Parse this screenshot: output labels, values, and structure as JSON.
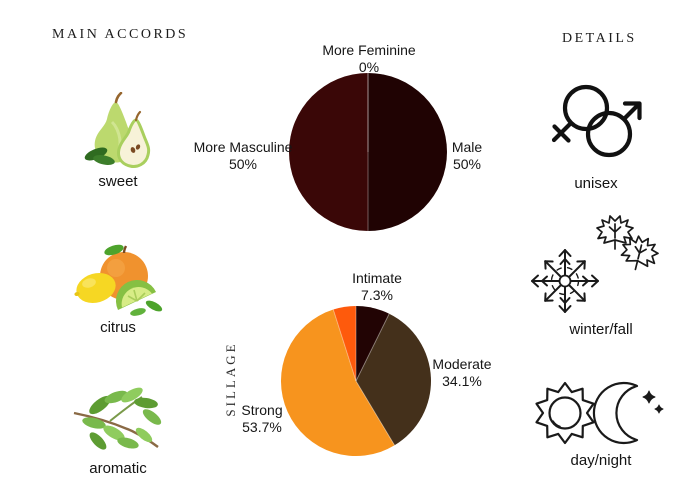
{
  "page": {
    "background": "#ffffff",
    "text_color": "#141414"
  },
  "accords": {
    "title": "MAIN ACCORDS",
    "items": [
      {
        "label": "sweet",
        "icon": "pear-icon"
      },
      {
        "label": "citrus",
        "icon": "citrus-fruits-icon"
      },
      {
        "label": "aromatic",
        "icon": "herb-sprig-icon"
      }
    ]
  },
  "details": {
    "title": "DETAILS",
    "items": [
      {
        "label": "unisex",
        "icon": "gender-unisex-icon"
      },
      {
        "label": "winter/fall",
        "icon": "snowflake-maple-leaves-icon"
      },
      {
        "label": "day/night",
        "icon": "sun-moon-icon"
      }
    ]
  },
  "chart_data": [
    {
      "type": "pie",
      "name": "gender-votes",
      "legend_position": "around",
      "slices": [
        {
          "label": "Male",
          "value": 50,
          "pct_label": "50%",
          "color": "#200303"
        },
        {
          "label": "More Masculine",
          "value": 50,
          "pct_label": "50%",
          "color": "#3a0707"
        },
        {
          "label": "More Feminine",
          "value": 0,
          "pct_label": "0%",
          "color": "#3a0707"
        }
      ]
    },
    {
      "type": "pie",
      "name": "sillage-votes",
      "axis_label": "SILLAGE",
      "legend_position": "around",
      "slices": [
        {
          "label": "Intimate",
          "value": 7.3,
          "pct_label": "7.3%",
          "color": "#220404"
        },
        {
          "label": "Moderate",
          "value": 34.1,
          "pct_label": "34.1%",
          "color": "#44301b"
        },
        {
          "label": "Strong",
          "value": 53.7,
          "pct_label": "53.7%",
          "color": "#f7941e"
        },
        {
          "label": "",
          "value": 4.9,
          "pct_label": "",
          "color": "#fe5a0c"
        }
      ]
    }
  ]
}
